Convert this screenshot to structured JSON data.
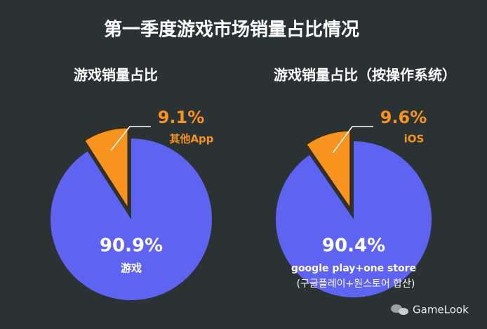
{
  "title": "第一季度游戏市场销量占比情况",
  "watermark": "GameLook",
  "chart_data": [
    {
      "type": "pie",
      "title": "游戏销量占比",
      "categories": [
        "游戏",
        "其他App"
      ],
      "values": [
        90.9,
        9.1
      ],
      "value_labels": [
        "90.9%",
        "9.1%"
      ],
      "colors": [
        "#5f63f2",
        "#f7931e"
      ]
    },
    {
      "type": "pie",
      "title": "游戏销量占比（按操作系统）",
      "categories": [
        "google play+one store",
        "iOS"
      ],
      "annotation": "(구글플레이+원스토어 합산)",
      "values": [
        90.4,
        9.6
      ],
      "value_labels": [
        "90.4%",
        "9.6%"
      ],
      "colors": [
        "#5f63f2",
        "#f7931e"
      ]
    }
  ]
}
